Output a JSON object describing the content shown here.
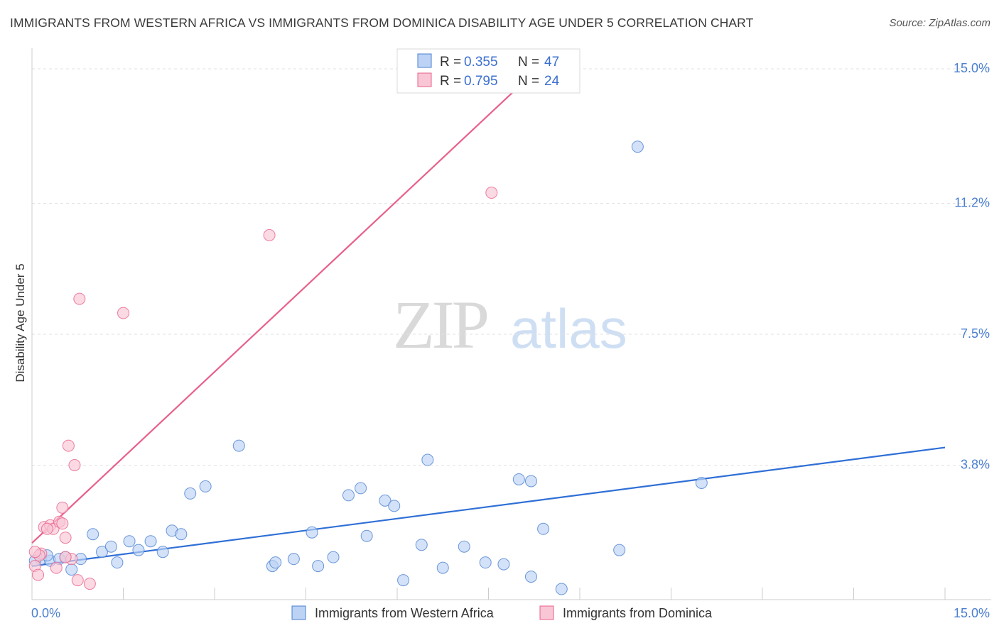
{
  "title": "IMMIGRANTS FROM WESTERN AFRICA VS IMMIGRANTS FROM DOMINICA DISABILITY AGE UNDER 5 CORRELATION CHART",
  "source": "Source: ZipAtlas.com",
  "watermark": {
    "zip": "ZIP",
    "atlas": "atlas"
  },
  "colors": {
    "blue": "#4a7fd1",
    "blue_fill": "#bcd3f5",
    "blue_line": "#2f6fd6",
    "pink": "#e8608a",
    "pink_fill": "#f9c6d6",
    "grid": "#e2e2e2"
  },
  "legend": {
    "r_label": "R =",
    "n_label": "N =",
    "rows": [
      {
        "series": "Immigrants from Western Africa",
        "r": "0.355",
        "n": "47"
      },
      {
        "series": "Immigrants from Dominica",
        "r": "0.795",
        "n": "24"
      }
    ]
  },
  "chart_data": {
    "type": "scatter",
    "title": "IMMIGRANTS FROM WESTERN AFRICA VS IMMIGRANTS FROM DOMINICA DISABILITY AGE UNDER 5 CORRELATION CHART",
    "xlabel": "",
    "ylabel": "Disability Age Under 5",
    "xlim": [
      0,
      15
    ],
    "ylim": [
      0,
      15
    ],
    "x_tick_labels": [
      "0.0%",
      "15.0%"
    ],
    "y_ticks": [
      3.8,
      7.5,
      11.2,
      15.0
    ],
    "y_tick_labels": [
      "3.8%",
      "7.5%",
      "11.2%",
      "15.0%"
    ],
    "grid": true,
    "legend_position": "top-center",
    "series": [
      {
        "name": "Immigrants from Western Africa",
        "color": "#4a7fd1",
        "trend": {
          "x": [
            0.0,
            15.0
          ],
          "y": [
            0.95,
            4.3
          ]
        },
        "points": [
          [
            0.15,
            1.15
          ],
          [
            0.3,
            1.1
          ],
          [
            0.45,
            1.15
          ],
          [
            0.55,
            1.2
          ],
          [
            0.65,
            0.85
          ],
          [
            0.8,
            1.15
          ],
          [
            1.0,
            1.85
          ],
          [
            1.15,
            1.35
          ],
          [
            1.3,
            1.5
          ],
          [
            1.4,
            1.05
          ],
          [
            1.6,
            1.65
          ],
          [
            1.75,
            1.4
          ],
          [
            1.95,
            1.65
          ],
          [
            2.15,
            1.35
          ],
          [
            2.3,
            1.95
          ],
          [
            2.45,
            1.85
          ],
          [
            2.6,
            3.0
          ],
          [
            2.85,
            3.2
          ],
          [
            3.4,
            4.35
          ],
          [
            3.95,
            0.95
          ],
          [
            4.0,
            1.05
          ],
          [
            4.3,
            1.15
          ],
          [
            4.6,
            1.9
          ],
          [
            4.7,
            0.95
          ],
          [
            4.95,
            1.2
          ],
          [
            5.2,
            2.95
          ],
          [
            5.4,
            3.15
          ],
          [
            5.5,
            1.8
          ],
          [
            5.8,
            2.8
          ],
          [
            5.95,
            2.65
          ],
          [
            6.1,
            0.55
          ],
          [
            6.4,
            1.55
          ],
          [
            6.5,
            3.95
          ],
          [
            6.75,
            0.9
          ],
          [
            7.1,
            1.5
          ],
          [
            7.45,
            1.05
          ],
          [
            7.75,
            1.0
          ],
          [
            8.0,
            3.4
          ],
          [
            8.2,
            3.35
          ],
          [
            8.2,
            0.65
          ],
          [
            8.4,
            2.0
          ],
          [
            8.7,
            0.3
          ],
          [
            9.65,
            1.4
          ],
          [
            9.95,
            12.8
          ],
          [
            11.0,
            3.3
          ],
          [
            0.05,
            1.1
          ],
          [
            0.25,
            1.25
          ]
        ]
      },
      {
        "name": "Immigrants from Dominica",
        "color": "#e8608a",
        "trend": {
          "x": [
            0.0,
            8.0
          ],
          "y": [
            1.6,
            14.5
          ]
        },
        "points": [
          [
            0.05,
            0.95
          ],
          [
            0.1,
            0.7
          ],
          [
            0.15,
            1.3
          ],
          [
            0.2,
            2.05
          ],
          [
            0.3,
            2.1
          ],
          [
            0.35,
            2.0
          ],
          [
            0.4,
            0.9
          ],
          [
            0.45,
            2.2
          ],
          [
            0.5,
            2.15
          ],
          [
            0.5,
            2.6
          ],
          [
            0.55,
            1.75
          ],
          [
            0.6,
            4.35
          ],
          [
            0.65,
            1.15
          ],
          [
            0.7,
            3.8
          ],
          [
            0.75,
            0.55
          ],
          [
            0.78,
            8.5
          ],
          [
            0.95,
            0.45
          ],
          [
            1.5,
            8.1
          ],
          [
            3.9,
            10.3
          ],
          [
            7.55,
            11.5
          ],
          [
            0.12,
            1.25
          ],
          [
            0.25,
            2.0
          ],
          [
            0.55,
            1.2
          ],
          [
            0.05,
            1.35
          ]
        ]
      }
    ]
  }
}
